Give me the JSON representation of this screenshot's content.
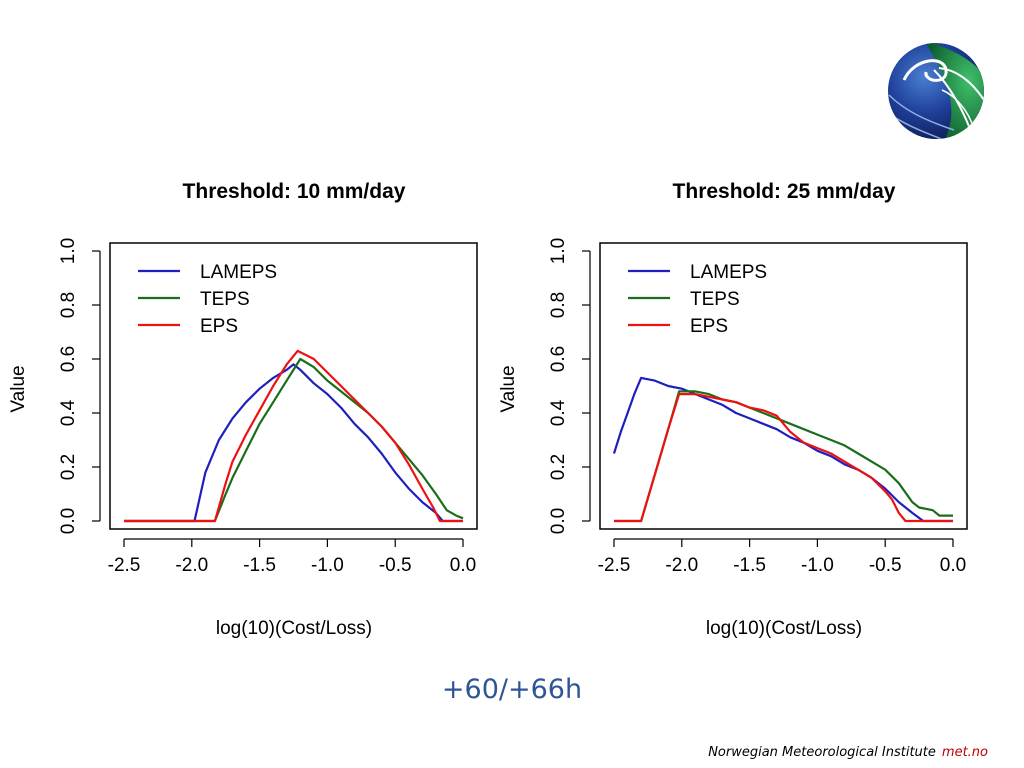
{
  "chart_data": [
    {
      "type": "line",
      "title": "Threshold: 10 mm/day",
      "xlabel": "log(10)(Cost/Loss)",
      "ylabel": "Value",
      "xlim": [
        -2.5,
        0.0
      ],
      "ylim": [
        0.0,
        1.0
      ],
      "xticks": [
        "-2.5",
        "-2.0",
        "-1.5",
        "-1.0",
        "-0.5",
        "0.0"
      ],
      "yticks": [
        "0.0",
        "0.2",
        "0.4",
        "0.6",
        "0.8",
        "1.0"
      ],
      "legend_position": "top-left",
      "series": [
        {
          "name": "LAMEPS",
          "color": "#1f1fbf",
          "points": [
            [
              -2.5,
              0
            ],
            [
              -1.98,
              0
            ],
            [
              -1.9,
              0.18
            ],
            [
              -1.8,
              0.3
            ],
            [
              -1.7,
              0.38
            ],
            [
              -1.6,
              0.44
            ],
            [
              -1.5,
              0.49
            ],
            [
              -1.4,
              0.53
            ],
            [
              -1.3,
              0.56
            ],
            [
              -1.25,
              0.58
            ],
            [
              -1.2,
              0.56
            ],
            [
              -1.1,
              0.51
            ],
            [
              -1.0,
              0.47
            ],
            [
              -0.9,
              0.42
            ],
            [
              -0.8,
              0.36
            ],
            [
              -0.7,
              0.31
            ],
            [
              -0.6,
              0.25
            ],
            [
              -0.5,
              0.18
            ],
            [
              -0.4,
              0.12
            ],
            [
              -0.3,
              0.07
            ],
            [
              -0.2,
              0.03
            ],
            [
              -0.15,
              0.0
            ],
            [
              0.0,
              0.0
            ]
          ]
        },
        {
          "name": "TEPS",
          "color": "#1a6e1a",
          "points": [
            [
              -2.5,
              0
            ],
            [
              -1.83,
              0
            ],
            [
              -1.75,
              0.1
            ],
            [
              -1.7,
              0.16
            ],
            [
              -1.6,
              0.26
            ],
            [
              -1.5,
              0.36
            ],
            [
              -1.4,
              0.44
            ],
            [
              -1.3,
              0.52
            ],
            [
              -1.2,
              0.6
            ],
            [
              -1.1,
              0.57
            ],
            [
              -1.0,
              0.52
            ],
            [
              -0.9,
              0.48
            ],
            [
              -0.8,
              0.44
            ],
            [
              -0.7,
              0.4
            ],
            [
              -0.6,
              0.35
            ],
            [
              -0.5,
              0.29
            ],
            [
              -0.4,
              0.23
            ],
            [
              -0.3,
              0.17
            ],
            [
              -0.2,
              0.1
            ],
            [
              -0.12,
              0.04
            ],
            [
              -0.05,
              0.02
            ],
            [
              0.0,
              0.01
            ]
          ]
        },
        {
          "name": "EPS",
          "color": "#ee1111",
          "points": [
            [
              -2.5,
              0
            ],
            [
              -1.83,
              0
            ],
            [
              -1.75,
              0.14
            ],
            [
              -1.7,
              0.22
            ],
            [
              -1.6,
              0.32
            ],
            [
              -1.5,
              0.41
            ],
            [
              -1.4,
              0.5
            ],
            [
              -1.3,
              0.58
            ],
            [
              -1.22,
              0.63
            ],
            [
              -1.1,
              0.6
            ],
            [
              -1.0,
              0.55
            ],
            [
              -0.9,
              0.5
            ],
            [
              -0.8,
              0.45
            ],
            [
              -0.7,
              0.4
            ],
            [
              -0.6,
              0.35
            ],
            [
              -0.5,
              0.29
            ],
            [
              -0.4,
              0.21
            ],
            [
              -0.3,
              0.12
            ],
            [
              -0.22,
              0.05
            ],
            [
              -0.17,
              0.0
            ],
            [
              0.0,
              0.0
            ]
          ]
        }
      ]
    },
    {
      "type": "line",
      "title": "Threshold: 25 mm/day",
      "xlabel": "log(10)(Cost/Loss)",
      "ylabel": "Value",
      "xlim": [
        -2.5,
        0.0
      ],
      "ylim": [
        0.0,
        1.0
      ],
      "xticks": [
        "-2.5",
        "-2.0",
        "-1.5",
        "-1.0",
        "-0.5",
        "0.0"
      ],
      "yticks": [
        "0.0",
        "0.2",
        "0.4",
        "0.6",
        "0.8",
        "1.0"
      ],
      "legend_position": "top-left",
      "series": [
        {
          "name": "LAMEPS",
          "color": "#1f1fbf",
          "points": [
            [
              -2.5,
              0.25
            ],
            [
              -2.45,
              0.33
            ],
            [
              -2.4,
              0.4
            ],
            [
              -2.35,
              0.47
            ],
            [
              -2.3,
              0.53
            ],
            [
              -2.2,
              0.52
            ],
            [
              -2.1,
              0.5
            ],
            [
              -2.0,
              0.49
            ],
            [
              -1.9,
              0.47
            ],
            [
              -1.8,
              0.45
            ],
            [
              -1.7,
              0.43
            ],
            [
              -1.6,
              0.4
            ],
            [
              -1.5,
              0.38
            ],
            [
              -1.4,
              0.36
            ],
            [
              -1.3,
              0.34
            ],
            [
              -1.2,
              0.31
            ],
            [
              -1.1,
              0.29
            ],
            [
              -1.0,
              0.26
            ],
            [
              -0.9,
              0.24
            ],
            [
              -0.8,
              0.21
            ],
            [
              -0.7,
              0.19
            ],
            [
              -0.6,
              0.16
            ],
            [
              -0.5,
              0.12
            ],
            [
              -0.4,
              0.07
            ],
            [
              -0.3,
              0.03
            ],
            [
              -0.22,
              0.0
            ],
            [
              0.0,
              0.0
            ]
          ]
        },
        {
          "name": "TEPS",
          "color": "#1a6e1a",
          "points": [
            [
              -2.5,
              0
            ],
            [
              -2.3,
              0
            ],
            [
              -2.2,
              0.17
            ],
            [
              -2.1,
              0.34
            ],
            [
              -2.02,
              0.48
            ],
            [
              -1.9,
              0.48
            ],
            [
              -1.8,
              0.47
            ],
            [
              -1.7,
              0.45
            ],
            [
              -1.6,
              0.44
            ],
            [
              -1.5,
              0.42
            ],
            [
              -1.4,
              0.4
            ],
            [
              -1.3,
              0.38
            ],
            [
              -1.2,
              0.36
            ],
            [
              -1.1,
              0.34
            ],
            [
              -1.0,
              0.32
            ],
            [
              -0.9,
              0.3
            ],
            [
              -0.8,
              0.28
            ],
            [
              -0.7,
              0.25
            ],
            [
              -0.6,
              0.22
            ],
            [
              -0.5,
              0.19
            ],
            [
              -0.4,
              0.14
            ],
            [
              -0.3,
              0.07
            ],
            [
              -0.25,
              0.05
            ],
            [
              -0.15,
              0.04
            ],
            [
              -0.1,
              0.02
            ],
            [
              0.0,
              0.02
            ]
          ]
        },
        {
          "name": "EPS",
          "color": "#ee1111",
          "points": [
            [
              -2.5,
              0
            ],
            [
              -2.3,
              0
            ],
            [
              -2.2,
              0.17
            ],
            [
              -2.1,
              0.34
            ],
            [
              -2.02,
              0.47
            ],
            [
              -1.9,
              0.47
            ],
            [
              -1.8,
              0.46
            ],
            [
              -1.7,
              0.45
            ],
            [
              -1.6,
              0.44
            ],
            [
              -1.5,
              0.42
            ],
            [
              -1.4,
              0.41
            ],
            [
              -1.3,
              0.39
            ],
            [
              -1.2,
              0.33
            ],
            [
              -1.1,
              0.29
            ],
            [
              -1.0,
              0.27
            ],
            [
              -0.9,
              0.25
            ],
            [
              -0.8,
              0.22
            ],
            [
              -0.7,
              0.19
            ],
            [
              -0.6,
              0.16
            ],
            [
              -0.5,
              0.11
            ],
            [
              -0.45,
              0.08
            ],
            [
              -0.4,
              0.03
            ],
            [
              -0.35,
              0.0
            ],
            [
              0.0,
              0.0
            ]
          ]
        }
      ]
    }
  ],
  "footnote": "+60/+66h",
  "footer": {
    "institute": "Norwegian Meteorological Institute",
    "brand": "met.no"
  },
  "logo": {
    "icon": "met-globe-logo",
    "colors": [
      "#1f3f9a",
      "#1a7a3a",
      "#ffffff"
    ]
  }
}
